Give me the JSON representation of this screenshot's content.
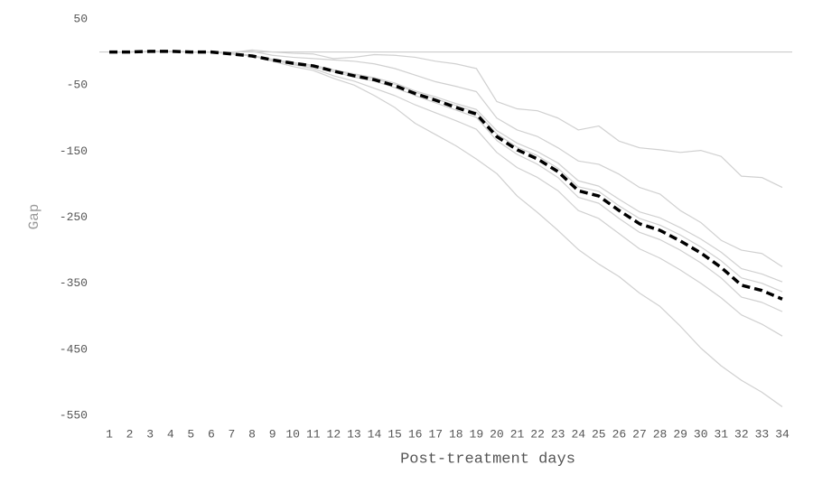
{
  "chart_data": {
    "type": "line",
    "x_label": "Post-treatment days",
    "y_label": "Gap",
    "categories": [
      "1",
      "2",
      "3",
      "4",
      "5",
      "6",
      "7",
      "8",
      "9",
      "10",
      "11",
      "12",
      "13",
      "14",
      "15",
      "16",
      "17",
      "18",
      "19",
      "20",
      "21",
      "22",
      "23",
      "24",
      "25",
      "26",
      "27",
      "28",
      "29",
      "30",
      "31",
      "32",
      "33",
      "34"
    ],
    "ylim": [
      -550,
      50
    ],
    "yticks": [
      50,
      -50,
      -150,
      -250,
      -350,
      -450,
      -550
    ],
    "hline": 0,
    "series": [
      {
        "color": "#d0d0d0",
        "values": [
          0,
          0,
          1,
          1,
          0,
          0,
          -1,
          3,
          0,
          -2,
          -3,
          -10,
          -8,
          -4,
          -5,
          -8,
          -14,
          -18,
          -25,
          -75,
          -86,
          -89,
          -100,
          -118,
          -112,
          -135,
          -145,
          -148,
          -152,
          -149,
          -158,
          -188,
          -190,
          -205
        ]
      },
      {
        "color": "#d0d0d0",
        "values": [
          0,
          0,
          1,
          1,
          0,
          0,
          0,
          1,
          -5,
          -8,
          -10,
          -12,
          -14,
          -18,
          -25,
          -35,
          -45,
          -52,
          -60,
          -100,
          -118,
          -128,
          -145,
          -165,
          -170,
          -185,
          -205,
          -215,
          -240,
          -258,
          -285,
          -300,
          -305,
          -325
        ]
      },
      {
        "color": "#d0d0d0",
        "values": [
          0,
          0,
          1,
          1,
          0,
          0,
          -3,
          -6,
          -11,
          -16,
          -20,
          -27,
          -33,
          -39,
          -47,
          -59,
          -68,
          -78,
          -87,
          -119,
          -138,
          -151,
          -168,
          -195,
          -203,
          -223,
          -242,
          -251,
          -266,
          -283,
          -303,
          -328,
          -336,
          -348
        ]
      },
      {
        "color": "#d0d0d0",
        "values": [
          0,
          0,
          1,
          1,
          0,
          0,
          -3,
          -6,
          -12,
          -16,
          -20,
          -28,
          -35,
          -41,
          -49,
          -61,
          -71,
          -81,
          -91,
          -124,
          -144,
          -157,
          -176,
          -204,
          -211,
          -233,
          -252,
          -262,
          -277,
          -295,
          -316,
          -342,
          -350,
          -363
        ]
      },
      {
        "color": "#d0d0d0",
        "values": [
          0,
          0,
          1,
          1,
          0,
          0,
          -3,
          -6,
          -13,
          -18,
          -22,
          -30,
          -38,
          -44,
          -54,
          -66,
          -77,
          -88,
          -99,
          -134,
          -155,
          -170,
          -190,
          -220,
          -229,
          -252,
          -273,
          -284,
          -300,
          -319,
          -342,
          -371,
          -379,
          -393
        ]
      },
      {
        "color": "#d0d0d0",
        "values": [
          0,
          0,
          1,
          1,
          0,
          0,
          -2,
          -5,
          -12,
          -19,
          -25,
          -36,
          -44,
          -55,
          -66,
          -80,
          -92,
          -104,
          -117,
          -152,
          -175,
          -190,
          -210,
          -240,
          -252,
          -275,
          -298,
          -312,
          -330,
          -350,
          -372,
          -398,
          -412,
          -430
        ]
      },
      {
        "color": "#d0d0d0",
        "values": [
          0,
          0,
          1,
          1,
          0,
          0,
          -2,
          -6,
          -14,
          -22,
          -28,
          -40,
          -50,
          -66,
          -84,
          -108,
          -125,
          -142,
          -162,
          -184,
          -218,
          -243,
          -270,
          -299,
          -321,
          -340,
          -365,
          -385,
          -415,
          -448,
          -475,
          -497,
          -515,
          -537
        ]
      },
      {
        "color": "#000000",
        "dashed": true,
        "values": [
          0,
          0,
          1,
          1,
          0,
          0,
          -3,
          -6,
          -12,
          -17,
          -21,
          -29,
          -36,
          -42,
          -51,
          -63,
          -73,
          -84,
          -94,
          -128,
          -148,
          -162,
          -181,
          -210,
          -218,
          -240,
          -260,
          -270,
          -286,
          -304,
          -326,
          -353,
          -361,
          -374
        ]
      }
    ]
  }
}
